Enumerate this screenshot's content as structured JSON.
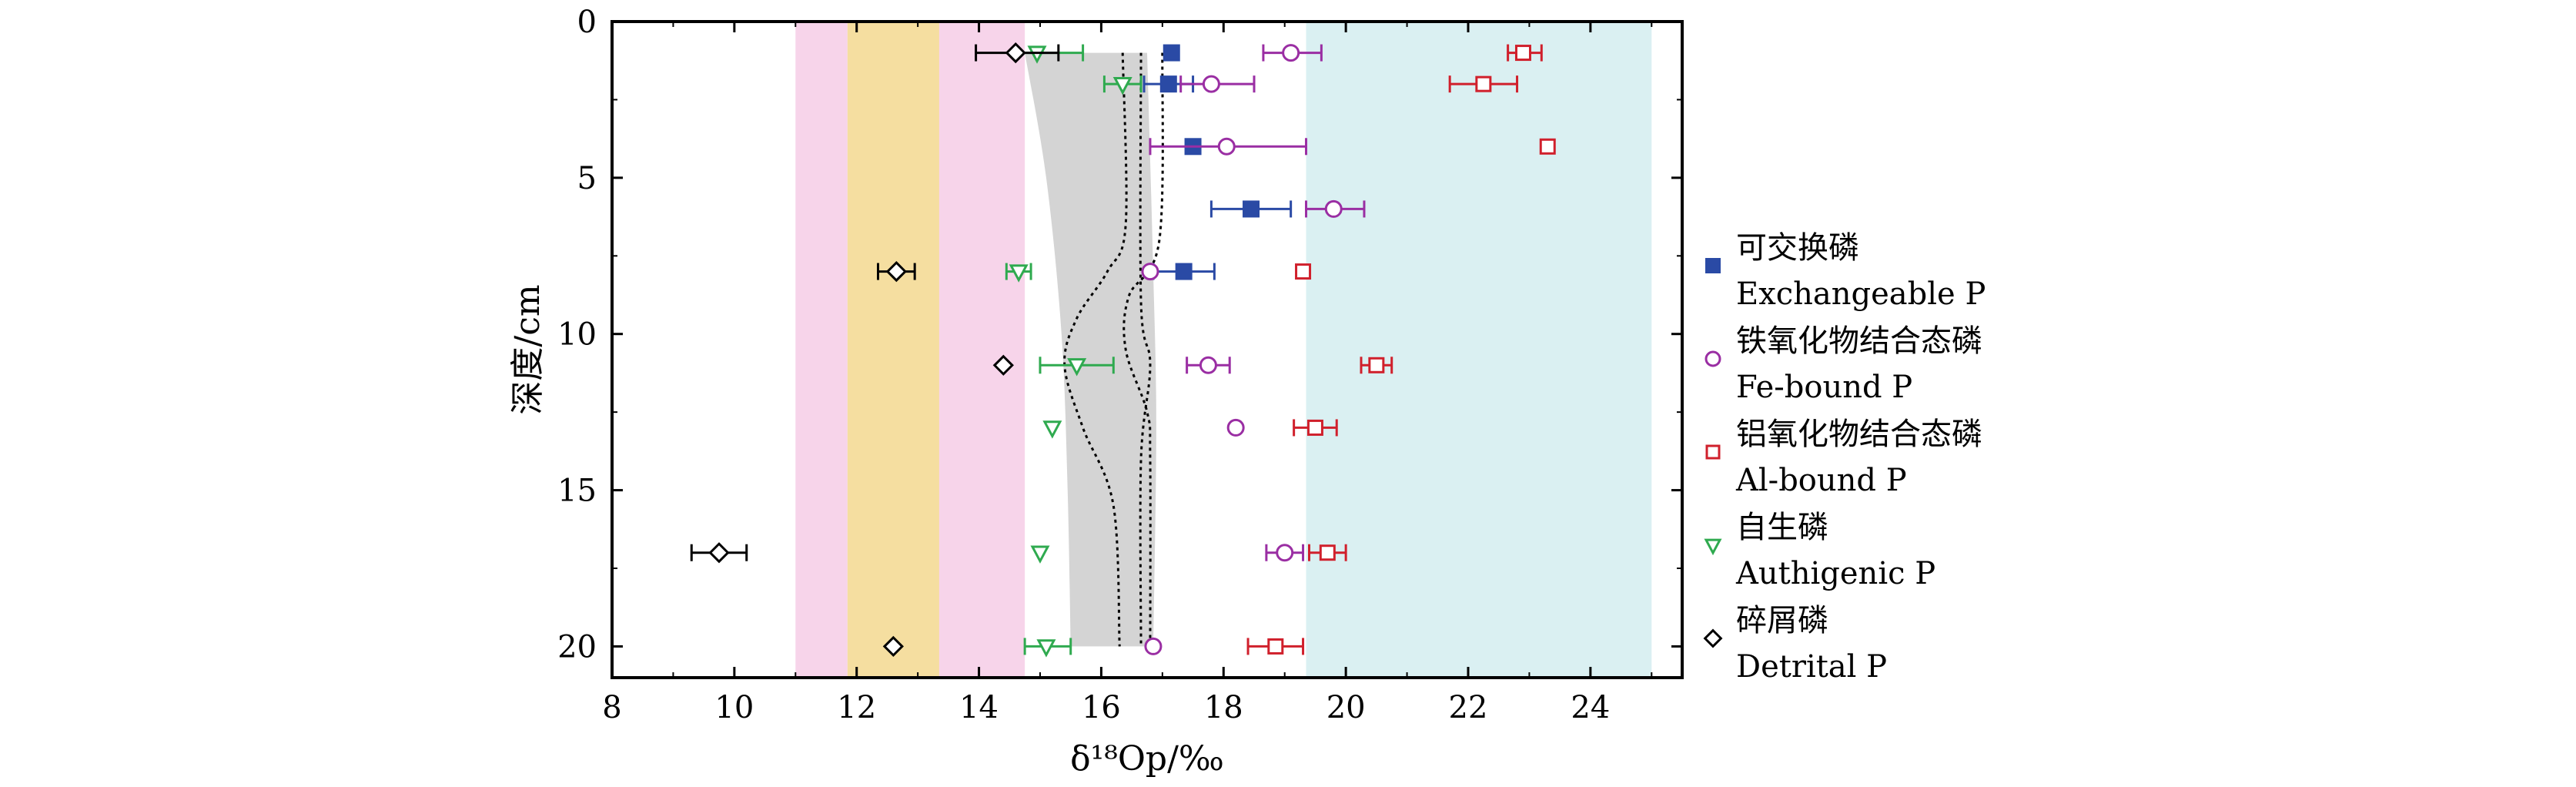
{
  "chart_data": {
    "type": "scatter",
    "title": "",
    "xlabel": "δ¹⁸Op/‰",
    "ylabel": "深度/cm",
    "xlim": [
      8,
      25.5
    ],
    "ylim": [
      0,
      21
    ],
    "y_inverted": true,
    "xticks": [
      8,
      10,
      12,
      14,
      16,
      18,
      20,
      22,
      24
    ],
    "yticks": [
      0,
      5,
      10,
      15,
      20
    ],
    "background_bands": [
      {
        "x": [
          11.0,
          11.85
        ],
        "color": "#f7d4ea"
      },
      {
        "x": [
          11.85,
          13.35
        ],
        "color": "#f5dea0"
      },
      {
        "x": [
          13.35,
          14.75
        ],
        "color": "#f7d4ea"
      },
      {
        "x": [
          19.35,
          25.0
        ],
        "color": "#daf0f2"
      }
    ],
    "gray_envelope": {
      "color": "#d4d4d4",
      "left_edge": [
        [
          14.75,
          1
        ],
        [
          15.1,
          5
        ],
        [
          15.35,
          10
        ],
        [
          15.45,
          15
        ],
        [
          15.5,
          20
        ]
      ],
      "right_edge": [
        [
          16.75,
          1
        ],
        [
          16.85,
          8
        ],
        [
          16.9,
          13
        ],
        [
          16.85,
          20
        ]
      ]
    },
    "dotted_curves": [
      {
        "points": [
          [
            16.35,
            1
          ],
          [
            16.4,
            6.5
          ],
          [
            16.1,
            8
          ],
          [
            15.6,
            9.5
          ],
          [
            15.4,
            11
          ],
          [
            15.7,
            13
          ],
          [
            16.2,
            15.5
          ],
          [
            16.3,
            20
          ]
        ]
      },
      {
        "points": [
          [
            16.65,
            1
          ],
          [
            16.65,
            9
          ],
          [
            16.8,
            11
          ],
          [
            16.65,
            14
          ],
          [
            16.65,
            20
          ]
        ]
      },
      {
        "points": [
          [
            17.0,
            1
          ],
          [
            16.95,
            7
          ],
          [
            16.45,
            8.8
          ],
          [
            16.4,
            10.5
          ],
          [
            16.75,
            12.5
          ],
          [
            16.8,
            14
          ],
          [
            16.8,
            20
          ]
        ]
      }
    ],
    "series": [
      {
        "name": "可交换磷 Exchangeable P",
        "name_cn": "可交换磷",
        "name_en": "Exchangeable P",
        "marker": "filled-square",
        "color": "#2a4aa5",
        "points": [
          {
            "x": 17.15,
            "y": 1
          },
          {
            "x": 17.1,
            "y": 2,
            "xerr": [
              16.7,
              17.5
            ]
          },
          {
            "x": 17.5,
            "y": 4
          },
          {
            "x": 18.45,
            "y": 6,
            "xerr": [
              17.8,
              19.1
            ]
          },
          {
            "x": 17.35,
            "y": 8,
            "xerr": [
              16.85,
              17.85
            ]
          }
        ]
      },
      {
        "name": "铁氧化物结合态磷 Fe-bound P",
        "name_cn": "铁氧化物结合态磷",
        "name_en": "Fe-bound P",
        "marker": "open-circle",
        "color": "#9a2ea3",
        "points": [
          {
            "x": 19.1,
            "y": 1,
            "xerr": [
              18.65,
              19.6
            ]
          },
          {
            "x": 17.8,
            "y": 2,
            "xerr": [
              17.3,
              18.5
            ]
          },
          {
            "x": 18.05,
            "y": 4,
            "xerr": [
              16.8,
              19.35
            ]
          },
          {
            "x": 19.8,
            "y": 6,
            "xerr": [
              19.35,
              20.3
            ]
          },
          {
            "x": 16.8,
            "y": 8
          },
          {
            "x": 17.75,
            "y": 11,
            "xerr": [
              17.4,
              18.1
            ]
          },
          {
            "x": 18.2,
            "y": 13
          },
          {
            "x": 19.0,
            "y": 17,
            "xerr": [
              18.7,
              19.3
            ]
          },
          {
            "x": 16.85,
            "y": 20
          }
        ]
      },
      {
        "name": "铝氧化物结合态磷 Al-bound P",
        "name_cn": "铝氧化物结合态磷",
        "name_en": "Al-bound P",
        "marker": "open-square",
        "color": "#d0202c",
        "points": [
          {
            "x": 22.9,
            "y": 1,
            "xerr": [
              22.65,
              23.2
            ]
          },
          {
            "x": 22.25,
            "y": 2,
            "xerr": [
              21.7,
              22.8
            ]
          },
          {
            "x": 23.3,
            "y": 4
          },
          {
            "x": 19.3,
            "y": 8
          },
          {
            "x": 20.5,
            "y": 11,
            "xerr": [
              20.25,
              20.75
            ]
          },
          {
            "x": 19.5,
            "y": 13,
            "xerr": [
              19.15,
              19.85
            ]
          },
          {
            "x": 19.7,
            "y": 17,
            "xerr": [
              19.4,
              20.0
            ]
          },
          {
            "x": 18.85,
            "y": 20,
            "xerr": [
              18.4,
              19.3
            ]
          }
        ]
      },
      {
        "name": "自生磷 Authigenic P",
        "name_cn": "自生磷",
        "name_en": "Authigenic P",
        "marker": "open-triangle-down",
        "color": "#2faa4f",
        "points": [
          {
            "x": 14.95,
            "y": 1,
            "xerr": [
              14.6,
              15.7
            ]
          },
          {
            "x": 16.35,
            "y": 2,
            "xerr": [
              16.05,
              16.65
            ]
          },
          {
            "x": 14.65,
            "y": 8,
            "xerr": [
              14.45,
              14.85
            ]
          },
          {
            "x": 15.6,
            "y": 11,
            "xerr": [
              15.0,
              16.2
            ]
          },
          {
            "x": 15.2,
            "y": 13
          },
          {
            "x": 15.0,
            "y": 17
          },
          {
            "x": 15.1,
            "y": 20,
            "xerr": [
              14.75,
              15.5
            ]
          }
        ]
      },
      {
        "name": "碎屑磷 Detrital P",
        "name_cn": "碎屑磷",
        "name_en": "Detrital P",
        "marker": "open-diamond",
        "color": "#000000",
        "points": [
          {
            "x": 14.6,
            "y": 1,
            "xerr": [
              13.95,
              15.3
            ]
          },
          {
            "x": 12.65,
            "y": 8,
            "xerr": [
              12.35,
              12.95
            ]
          },
          {
            "x": 14.4,
            "y": 11
          },
          {
            "x": 9.75,
            "y": 17,
            "xerr": [
              9.3,
              10.2
            ]
          },
          {
            "x": 12.6,
            "y": 20
          }
        ]
      }
    ],
    "legend_position": "right"
  }
}
